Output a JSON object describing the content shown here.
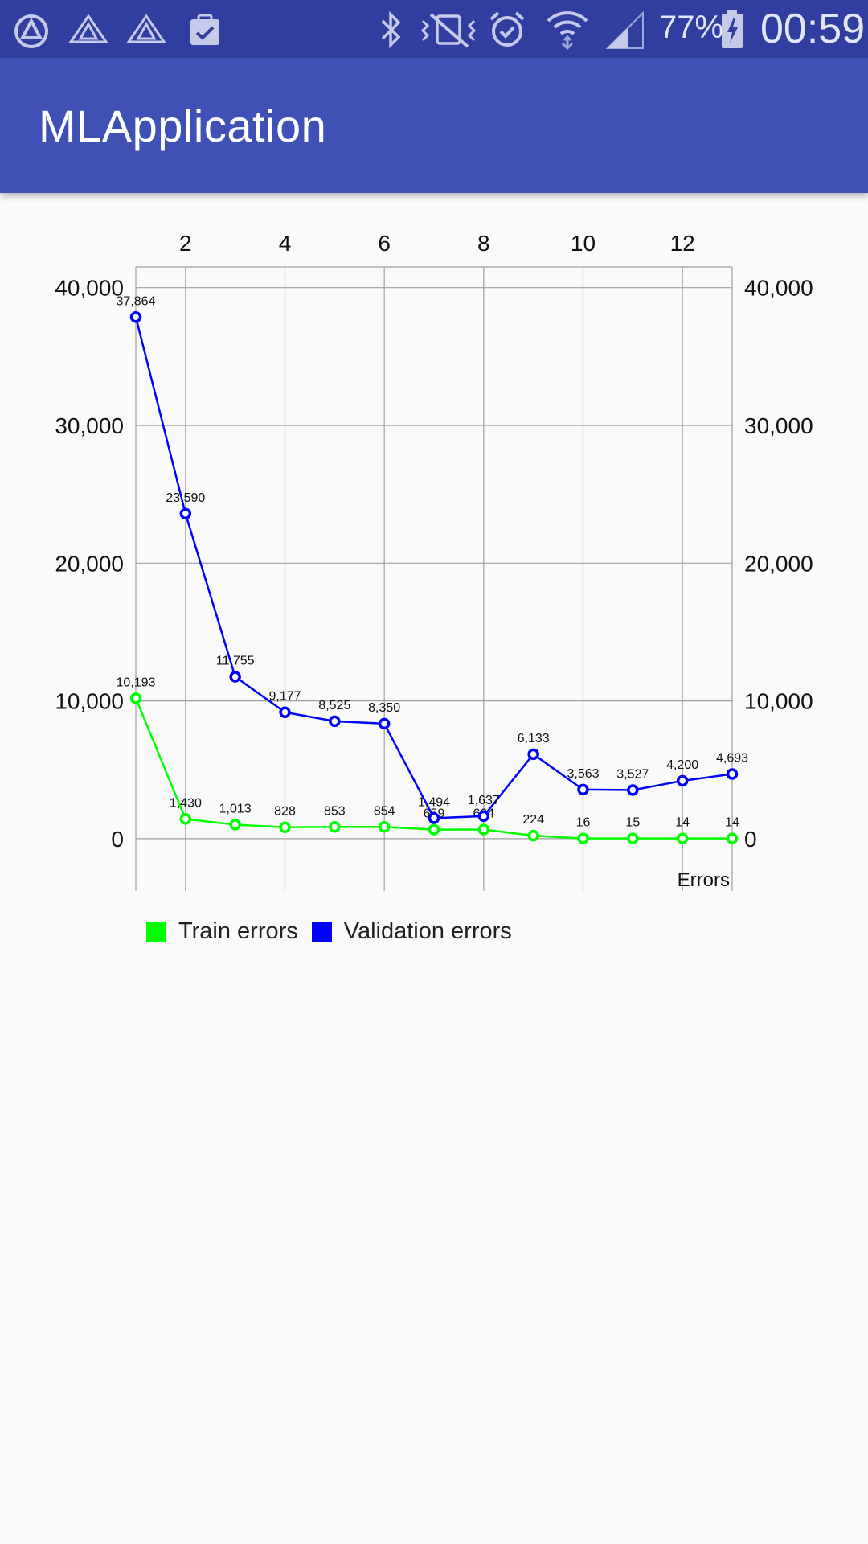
{
  "status_bar": {
    "battery": "77%",
    "time": "00:59",
    "left_icons": [
      "app-logo-icon",
      "triangle-a-icon",
      "triangle-a-icon",
      "clipboard-check-icon"
    ],
    "right_icons": [
      "bluetooth-icon",
      "vibrate-off-icon",
      "alarm-icon",
      "wifi-icon",
      "signal-icon",
      "battery-charging-icon"
    ],
    "background": "#303f9f"
  },
  "app_bar": {
    "title": "MLApplication",
    "background": "#3f51b5"
  },
  "chart_data": {
    "type": "line",
    "x": [
      1,
      2,
      3,
      4,
      5,
      6,
      7,
      8,
      9,
      10,
      11,
      12,
      13
    ],
    "x_ticks": [
      "2",
      "4",
      "6",
      "8",
      "10",
      "12"
    ],
    "x_tick_values": [
      2,
      4,
      6,
      8,
      10,
      12
    ],
    "xlim": [
      1,
      13
    ],
    "ylim": [
      -3800,
      41500
    ],
    "y_ticks": [
      "0",
      "10,000",
      "20,000",
      "30,000",
      "40,000"
    ],
    "y_tick_values": [
      0,
      10000,
      20000,
      30000,
      40000
    ],
    "xlabel": "Errors",
    "x_axis_position": "top",
    "y_axes": "left-and-right",
    "grid": true,
    "legend_position": "bottom-left",
    "series": [
      {
        "name": "Train errors",
        "color": "#00ff00",
        "values": [
          10193,
          1430,
          1013,
          828,
          853,
          854,
          659,
          664,
          224,
          16,
          15,
          14,
          14
        ],
        "labels": [
          "10,193",
          "1,430",
          "1,013",
          "828",
          "853",
          "854",
          "659",
          "664",
          "224",
          "16",
          "15",
          "14",
          "14"
        ]
      },
      {
        "name": "Validation errors",
        "color": "#0000ff",
        "values": [
          37864,
          23590,
          11755,
          9177,
          8525,
          8350,
          1494,
          1637,
          6133,
          3563,
          3527,
          4200,
          4693
        ],
        "labels": [
          "37,864",
          "23,590",
          "11,755",
          "9,177",
          "8,525",
          "8,350",
          "1,494",
          "1,637",
          "6,133",
          "3,563",
          "3,527",
          "4,200",
          "4,693"
        ]
      }
    ]
  }
}
